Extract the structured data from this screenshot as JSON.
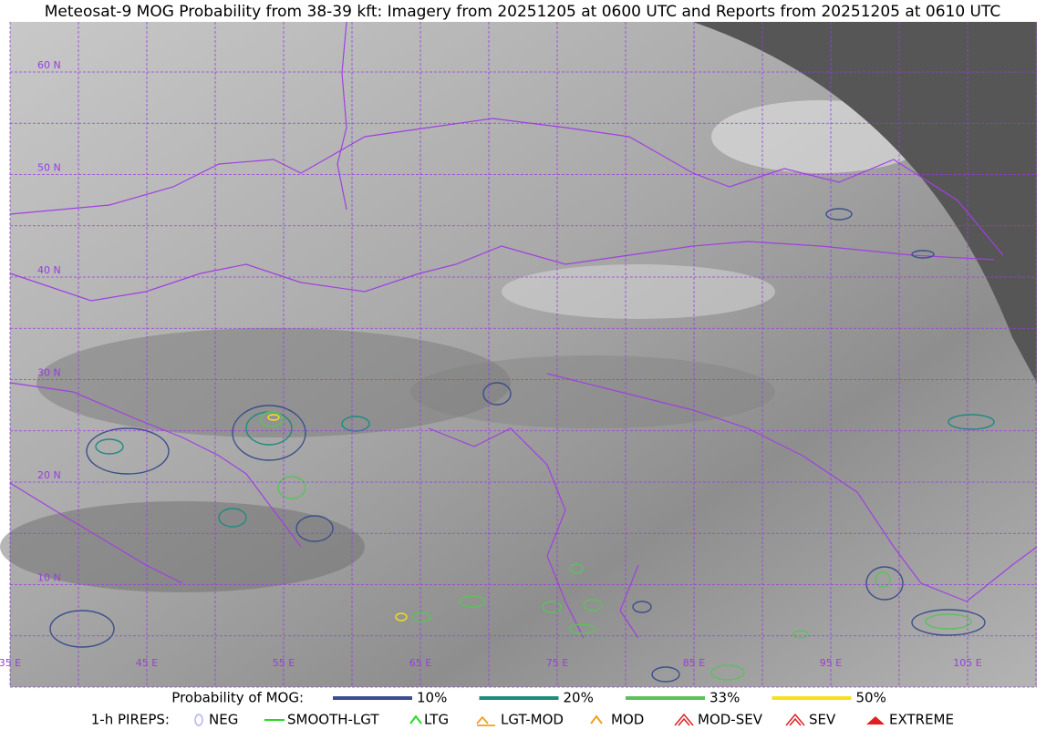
{
  "title": "Meteosat-9 MOG Probability from 38-39 kft: Imagery from 20251205 at 0600 UTC and Reports from 20251205 at 0610 UTC",
  "map": {
    "lat_labels": [
      "60 N",
      "50 N",
      "40 N",
      "30 N",
      "20 N",
      "10 N"
    ],
    "lon_labels": [
      "35 E",
      "45 E",
      "55 E",
      "65 E",
      "75 E",
      "85 E",
      "95 E",
      "105 E"
    ]
  },
  "legend": {
    "probability": {
      "label": "Probability of MOG:",
      "items": [
        {
          "label": "10%",
          "color": "#3b4f8a"
        },
        {
          "label": "20%",
          "color": "#1f8a80"
        },
        {
          "label": "33%",
          "color": "#5cc15c"
        },
        {
          "label": "50%",
          "color": "#f5e11c"
        }
      ]
    },
    "pireps": {
      "label": "1-h PIREPS:",
      "items": [
        {
          "label": "NEG",
          "color": "#b0b0f0"
        },
        {
          "label": "SMOOTH-LGT",
          "color": "#22dd22"
        },
        {
          "label": "LTG",
          "color": "#22dd22"
        },
        {
          "label": "LGT-MOD",
          "color": "#f0a020"
        },
        {
          "label": "MOD",
          "color": "#f0a020"
        },
        {
          "label": "MOD-SEV",
          "color": "#e02020"
        },
        {
          "label": "SEV",
          "color": "#e02020"
        },
        {
          "label": "EXTREME",
          "color": "#e02020"
        }
      ]
    }
  }
}
